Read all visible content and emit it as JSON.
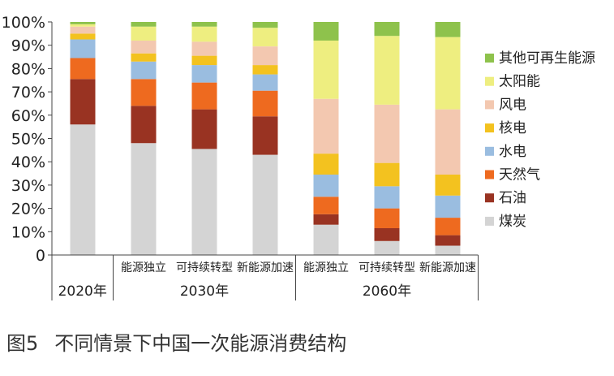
{
  "caption": {
    "figure_no": "图5",
    "title": "不同情景下中国一次能源消费结构"
  },
  "chart_data": {
    "type": "bar",
    "stacked": true,
    "y_tick_labels": [
      "0",
      "10%",
      "20%",
      "30%",
      "40%",
      "50%",
      "60%",
      "70%",
      "80%",
      "90%",
      "100%"
    ],
    "ylim": [
      0,
      100
    ],
    "grid": false,
    "legend_position": "right",
    "categories": [
      "",
      "能源独立",
      "可持续转型",
      "新能源加速",
      "能源独立",
      "可持续转型",
      "新能源加速"
    ],
    "groups": [
      {
        "label": "2020年",
        "count": 1
      },
      {
        "label": "2030年",
        "count": 3
      },
      {
        "label": "2060年",
        "count": 3
      }
    ],
    "series": [
      {
        "name": "煤炭",
        "color": "#d4d4d4",
        "values": [
          56,
          48,
          45.5,
          43,
          13,
          6,
          4
        ]
      },
      {
        "name": "石油",
        "color": "#993322",
        "values": [
          19.5,
          16,
          17,
          16.5,
          4.5,
          5.5,
          4.5
        ]
      },
      {
        "name": "天然气",
        "color": "#ee6a1f",
        "values": [
          9,
          11.5,
          11.5,
          11,
          7.5,
          8.5,
          7.5
        ]
      },
      {
        "name": "水电",
        "color": "#9abde0",
        "values": [
          8,
          7.5,
          7.5,
          7,
          9.5,
          9.5,
          9.5
        ]
      },
      {
        "name": "核电",
        "color": "#f3c21f",
        "values": [
          2.5,
          3.5,
          4,
          4,
          9,
          10,
          9
        ]
      },
      {
        "name": "风电",
        "color": "#f3c8b0",
        "values": [
          3,
          5.5,
          6,
          8,
          23.5,
          25,
          28
        ]
      },
      {
        "name": "太阳能",
        "color": "#eeee80",
        "values": [
          1,
          6,
          6.5,
          8,
          25,
          29.5,
          31
        ]
      },
      {
        "name": "其他可再生能源",
        "color": "#8ec24c",
        "values": [
          1,
          2,
          2,
          2.5,
          8,
          6,
          6.5
        ]
      }
    ]
  }
}
